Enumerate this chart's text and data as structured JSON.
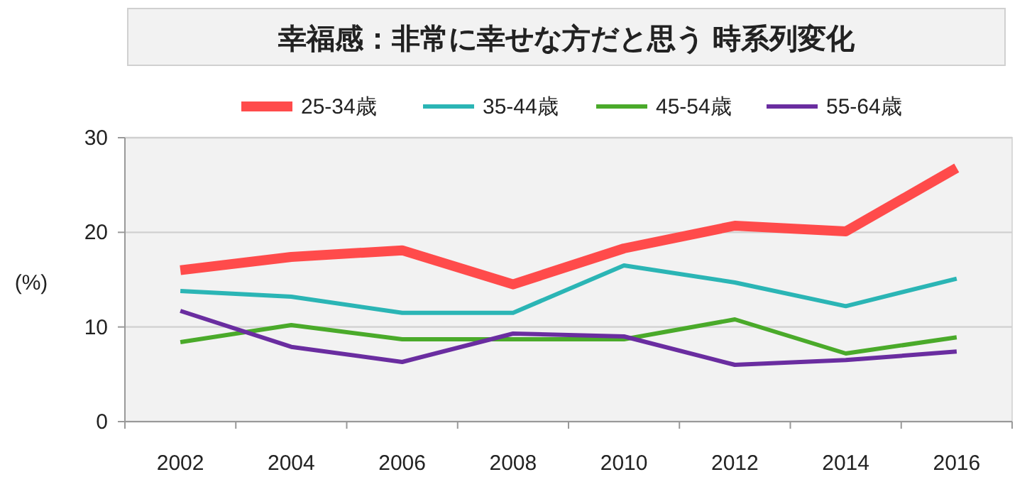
{
  "chart_data": {
    "type": "line",
    "title": "幸福感：非常に幸せな方だと思う  時系列変化",
    "ylabel": "(%)",
    "categories": [
      "2002",
      "2004",
      "2006",
      "2008",
      "2010",
      "2012",
      "2014",
      "2016"
    ],
    "ylim": [
      0,
      30
    ],
    "yticks": [
      0,
      10,
      20,
      30
    ],
    "grid": "y",
    "legend": "top",
    "series": [
      {
        "name": "25-34歳",
        "color": "#ff4b4b",
        "values": [
          16.0,
          17.4,
          18.1,
          14.5,
          18.3,
          20.7,
          20.1,
          26.8
        ]
      },
      {
        "name": "35-44歳",
        "color": "#2bb5b5",
        "values": [
          13.8,
          13.2,
          11.5,
          11.5,
          16.5,
          14.7,
          12.2,
          15.1
        ]
      },
      {
        "name": "45-54歳",
        "color": "#4aaa2a",
        "values": [
          8.4,
          10.2,
          8.7,
          8.7,
          8.7,
          10.8,
          7.2,
          8.9
        ]
      },
      {
        "name": "55-64歳",
        "color": "#6a2da0",
        "values": [
          11.7,
          7.9,
          6.3,
          9.3,
          9.0,
          6.0,
          6.5,
          7.4
        ]
      }
    ]
  }
}
